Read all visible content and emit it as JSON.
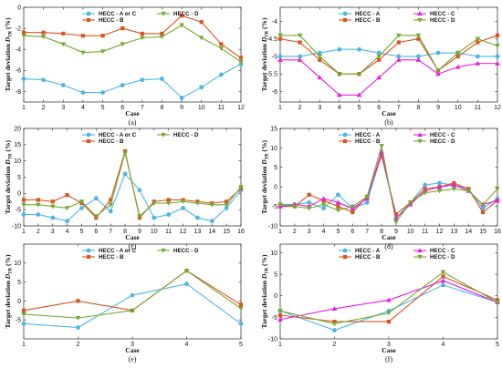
{
  "colors": {
    "A": "#4fb5e6",
    "B": "#d9541f",
    "C": "#e61ee0",
    "D": "#76a832"
  },
  "chart_data": [
    {
      "type": "line",
      "label": "(a)",
      "ylabel": "Target deviation D_TR (%)",
      "xlabel": "Case",
      "x": [
        1,
        2,
        3,
        4,
        5,
        6,
        7,
        8,
        9,
        10,
        11,
        12
      ],
      "xlim": [
        1,
        12
      ],
      "ylim": [
        -9,
        0
      ],
      "yticks": [
        -8,
        -6,
        -4,
        -2,
        0
      ],
      "legend_cols": 2,
      "series": [
        {
          "name": "HECC - A or C",
          "key": "A",
          "marker": "circle",
          "values": [
            -6.8,
            -6.9,
            -7.4,
            -8.1,
            -8.1,
            -7.4,
            -6.9,
            -6.8,
            -8.6,
            -7.6,
            -6.4,
            -5.4
          ]
        },
        {
          "name": "HECC - B",
          "key": "B",
          "marker": "square",
          "values": [
            -2.4,
            -2.4,
            -2.5,
            -2.7,
            -2.7,
            -2.0,
            -2.5,
            -2.5,
            -0.8,
            -1.4,
            -3.5,
            -4.8
          ]
        },
        {
          "name": "HECC - D",
          "key": "D",
          "marker": "tridown",
          "values": [
            -2.7,
            -2.8,
            -3.5,
            -4.3,
            -4.2,
            -3.5,
            -2.9,
            -2.8,
            -1.7,
            -2.9,
            -3.9,
            -5.2
          ]
        }
      ]
    },
    {
      "type": "line",
      "label": "(b)",
      "ylabel": "Target deviation D_TR (%)",
      "xlabel": "Case",
      "x": [
        1,
        2,
        3,
        4,
        5,
        6,
        7,
        8,
        9,
        10,
        11,
        12
      ],
      "xlim": [
        1,
        12
      ],
      "ylim": [
        -6.3,
        -3.6
      ],
      "yticks": [
        -6,
        -5.5,
        -5,
        -4.5,
        -4
      ],
      "legend_cols": 2,
      "series": [
        {
          "name": "HECC - A",
          "key": "A",
          "marker": "circle",
          "values": [
            -5.0,
            -5.0,
            -4.9,
            -4.8,
            -4.8,
            -4.9,
            -5.0,
            -5.0,
            -4.9,
            -4.9,
            -5.0,
            -5.0
          ]
        },
        {
          "name": "HECC - B",
          "key": "B",
          "marker": "square",
          "values": [
            -4.5,
            -4.6,
            -5.1,
            -5.5,
            -5.5,
            -5.1,
            -4.6,
            -4.5,
            -5.4,
            -5.0,
            -4.6,
            -4.4
          ]
        },
        {
          "name": "HECC - C",
          "key": "C",
          "marker": "triup",
          "values": [
            -5.1,
            -5.1,
            -5.6,
            -6.1,
            -6.1,
            -5.6,
            -5.1,
            -5.1,
            -5.5,
            -5.3,
            -5.2,
            -5.2
          ]
        },
        {
          "name": "HECC - D",
          "key": "D",
          "marker": "tridown",
          "values": [
            -4.4,
            -4.4,
            -5.0,
            -5.5,
            -5.5,
            -5.0,
            -4.4,
            -4.4,
            -5.4,
            -4.9,
            -4.5,
            -4.7
          ]
        }
      ]
    },
    {
      "type": "line",
      "label": "(c)",
      "ylabel": "Target deviation D_TR (%)",
      "xlabel": "Case",
      "x": [
        1,
        2,
        3,
        4,
        5,
        6,
        7,
        8,
        9,
        10,
        11,
        12,
        13,
        14,
        15,
        16
      ],
      "xlim": [
        1,
        16
      ],
      "ylim": [
        -10,
        20
      ],
      "yticks": [
        -10,
        -5,
        0,
        5,
        10,
        15,
        20
      ],
      "legend_cols": 2,
      "series": [
        {
          "name": "HECC - A or C",
          "key": "A",
          "marker": "circle",
          "values": [
            -6.5,
            -6.5,
            -7.5,
            -8.5,
            -4.5,
            -1.5,
            -5.5,
            6.0,
            1.0,
            -7.5,
            -6.5,
            -4.5,
            -7.5,
            -8.5,
            -4.5,
            1.0
          ]
        },
        {
          "name": "HECC - B",
          "key": "B",
          "marker": "square",
          "values": [
            -2.0,
            -2.0,
            -2.5,
            -0.5,
            -3.0,
            -7.5,
            -2.0,
            13.0,
            -7.5,
            -2.5,
            -2.0,
            -2.0,
            -2.5,
            -3.0,
            -2.5,
            1.5
          ]
        },
        {
          "name": "HECC - D",
          "key": "D",
          "marker": "tridown",
          "values": [
            -3.5,
            -3.5,
            -4.0,
            -4.5,
            -2.5,
            -7.0,
            -3.5,
            12.5,
            -7.0,
            -3.0,
            -3.0,
            -2.5,
            -3.0,
            -3.5,
            -3.5,
            2.0
          ]
        }
      ]
    },
    {
      "type": "line",
      "label": "(d)",
      "ylabel": "Target deviation D_TR (%)",
      "xlabel": "Case",
      "x": [
        1,
        2,
        3,
        4,
        5,
        6,
        7,
        8,
        9,
        10,
        11,
        12,
        13,
        14,
        15,
        16
      ],
      "xlim": [
        1,
        16
      ],
      "ylim": [
        -10,
        15
      ],
      "yticks": [
        -10,
        -5,
        0,
        5,
        10,
        15
      ],
      "legend_cols": 2,
      "series": [
        {
          "name": "HECC - A",
          "key": "A",
          "marker": "circle",
          "values": [
            -4.5,
            -4.5,
            -4.0,
            -5.5,
            -2.0,
            -5.5,
            -4.0,
            8.5,
            -8.0,
            -4.0,
            0.5,
            1.0,
            0.5,
            -0.5,
            -5.5,
            -3.0
          ]
        },
        {
          "name": "HECC - B",
          "key": "B",
          "marker": "square",
          "values": [
            -5.0,
            -5.0,
            -2.0,
            -3.5,
            -5.0,
            -6.5,
            -2.5,
            8.0,
            -7.0,
            -4.0,
            -0.5,
            0.0,
            1.0,
            -0.5,
            -6.5,
            -3.5
          ]
        },
        {
          "name": "HECC - C",
          "key": "C",
          "marker": "triup",
          "values": [
            -5.0,
            -4.5,
            -5.0,
            -3.0,
            -4.0,
            -5.5,
            -3.0,
            9.0,
            -8.0,
            -4.5,
            -1.0,
            0.0,
            0.5,
            -1.0,
            -4.5,
            -3.5
          ]
        },
        {
          "name": "HECC - D",
          "key": "D",
          "marker": "tridown",
          "values": [
            -4.5,
            -5.0,
            -5.5,
            -4.5,
            -6.0,
            -5.0,
            -2.5,
            10.5,
            -9.0,
            -4.0,
            -1.5,
            -1.0,
            -0.5,
            -1.0,
            -4.5,
            -0.5
          ]
        }
      ]
    },
    {
      "type": "line",
      "label": "(e)",
      "ylabel": "Target deviation D_TR (%)",
      "xlabel": "Case",
      "x": [
        1,
        2,
        3,
        4,
        5
      ],
      "xlim": [
        1,
        5
      ],
      "ylim": [
        -10,
        15
      ],
      "yticks": [
        -5,
        0,
        5,
        10
      ],
      "legend_cols": 2,
      "series": [
        {
          "name": "HECC - A or C",
          "key": "A",
          "marker": "circle",
          "values": [
            -6.0,
            -7.0,
            1.5,
            4.5,
            -6.0
          ]
        },
        {
          "name": "HECC - B",
          "key": "B",
          "marker": "square",
          "values": [
            -2.5,
            0.0,
            -2.5,
            8.0,
            -1.0
          ]
        },
        {
          "name": "HECC - D",
          "key": "D",
          "marker": "tridown",
          "values": [
            -3.5,
            -4.5,
            -2.5,
            8.0,
            -2.0
          ]
        }
      ]
    },
    {
      "type": "line",
      "label": "(f)",
      "ylabel": "Target deviation D_TR (%)",
      "xlabel": "Case",
      "x": [
        1,
        2,
        3,
        4,
        5
      ],
      "xlim": [
        1,
        5
      ],
      "ylim": [
        -10,
        12
      ],
      "yticks": [
        -10,
        -5,
        0,
        5,
        10
      ],
      "legend_cols": 2,
      "series": [
        {
          "name": "HECC - A",
          "key": "A",
          "marker": "circle",
          "values": [
            -3.5,
            -8.0,
            -3.5,
            2.5,
            -1.5
          ]
        },
        {
          "name": "HECC - B",
          "key": "B",
          "marker": "square",
          "values": [
            -4.5,
            -6.0,
            -6.0,
            4.5,
            -1.0
          ]
        },
        {
          "name": "HECC - C",
          "key": "C",
          "marker": "triup",
          "values": [
            -5.5,
            -3.0,
            -1.0,
            3.5,
            -1.5
          ]
        },
        {
          "name": "HECC - D",
          "key": "D",
          "marker": "tridown",
          "values": [
            -3.5,
            -6.5,
            -4.0,
            5.5,
            -1.5
          ]
        }
      ]
    }
  ]
}
